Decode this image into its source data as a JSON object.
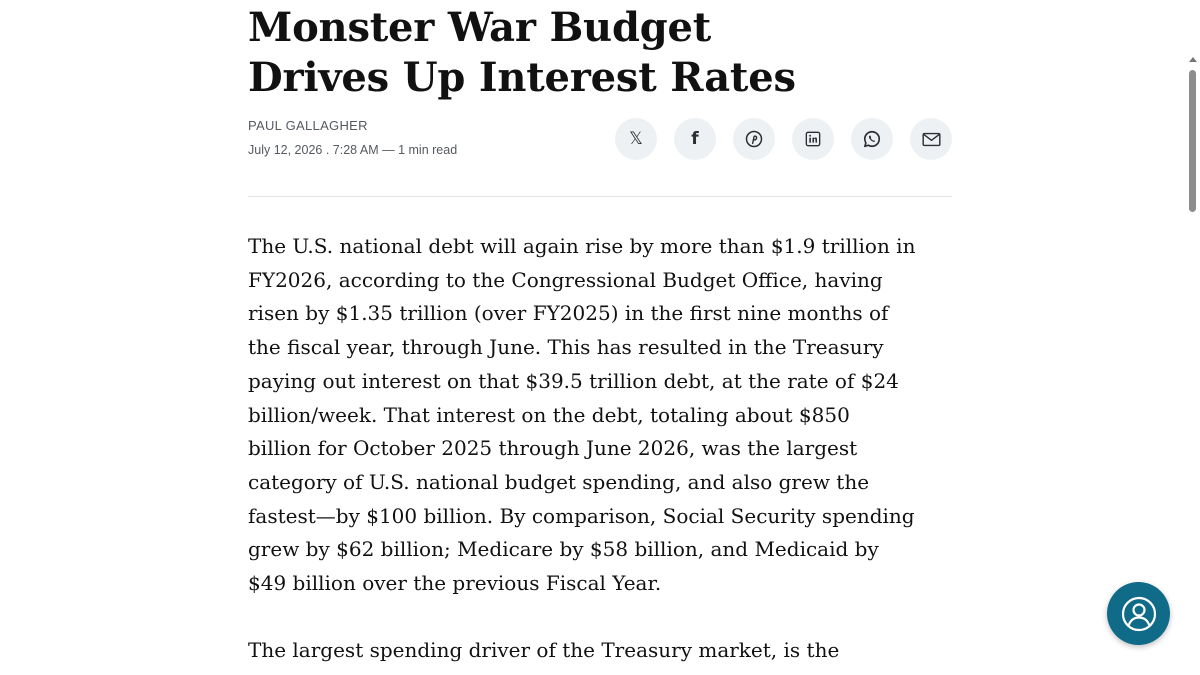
{
  "article": {
    "headline_lines": [
      "Monster War Budget",
      "Drives Up Interest Rates"
    ],
    "author": "PAUL GALLAGHER",
    "dateline": "July 12, 2026 . 7:28 AM — 1 min read",
    "share_buttons": [
      {
        "icon": "x-icon",
        "glyph": "𝕏"
      },
      {
        "icon": "facebook-icon",
        "glyph": "f"
      },
      {
        "icon": "pinterest-icon"
      },
      {
        "icon": "linkedin-icon"
      },
      {
        "icon": "whatsapp-icon"
      },
      {
        "icon": "email-icon"
      }
    ],
    "paragraph1_lines": [
      "The U.S. national debt will again rise by more than $1.9 trillion in",
      "FY2026, according to the Congressional Budget Office, having",
      "risen by $1.35 trillion (over FY2025) in the first nine months of",
      "the fiscal year, through June. This has resulted in the Treasury",
      "paying out interest on that $39.5 trillion debt, at the rate of $24",
      "billion/week. That interest on the debt, totaling about $850",
      "billion for October 2025 through June 2026, was the largest",
      "category of U.S. national budget spending, and also grew the",
      "fastest—by $100 billion. By comparison, Social Security spending",
      "grew by $62 billion; Medicare by $58 billion, and Medicaid by",
      "$49 billion over the previous Fiscal Year."
    ],
    "paragraph2_lines": [
      "The largest spending driver of the Treasury market, is the"
    ]
  },
  "widgets": {
    "help_icon": "user-support-icon",
    "accent_color": "#0f6b88"
  }
}
